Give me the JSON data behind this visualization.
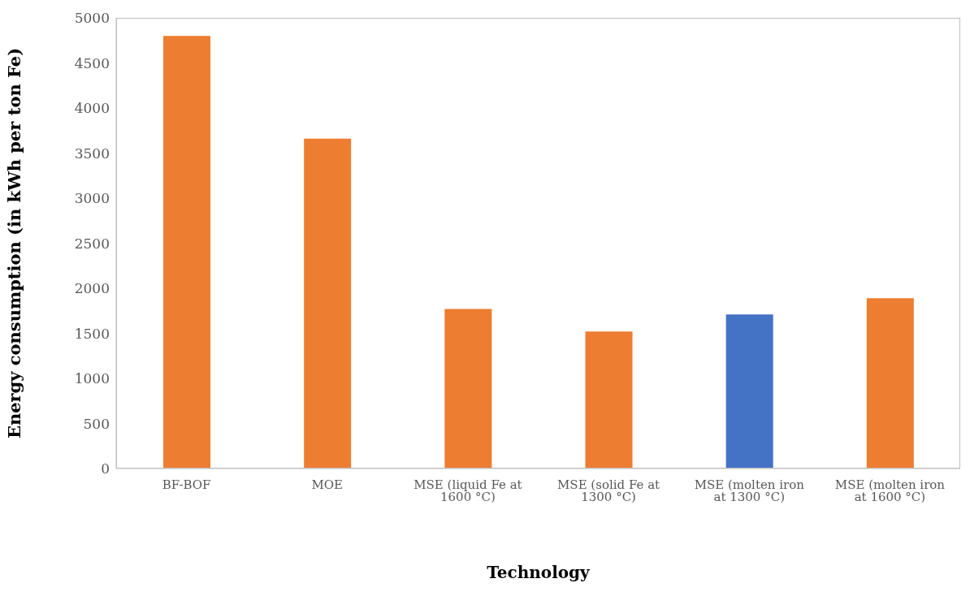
{
  "chart_data": {
    "type": "bar",
    "xlabel": "Technology",
    "ylabel": "Energy consumption (in kWh per ton Fe)",
    "categories": [
      "BF-BOF",
      "MOE",
      "MSE (liquid Fe at 1600 °C)",
      "MSE (solid Fe at 1300 °C)",
      "MSE (molten iron at 1300 °C)",
      "MSE (molten iron at 1600 °C)"
    ],
    "values": [
      4800,
      3660,
      1770,
      1520,
      1710,
      1890
    ],
    "colors": [
      "#ed7d31",
      "#ed7d31",
      "#ed7d31",
      "#ed7d31",
      "#4472c4",
      "#ed7d31"
    ],
    "ylim": [
      0,
      5000
    ],
    "yticks": [
      0,
      500,
      1000,
      1500,
      2000,
      2500,
      3000,
      3500,
      4000,
      4500,
      5000
    ],
    "grid": false,
    "legend": false
  }
}
